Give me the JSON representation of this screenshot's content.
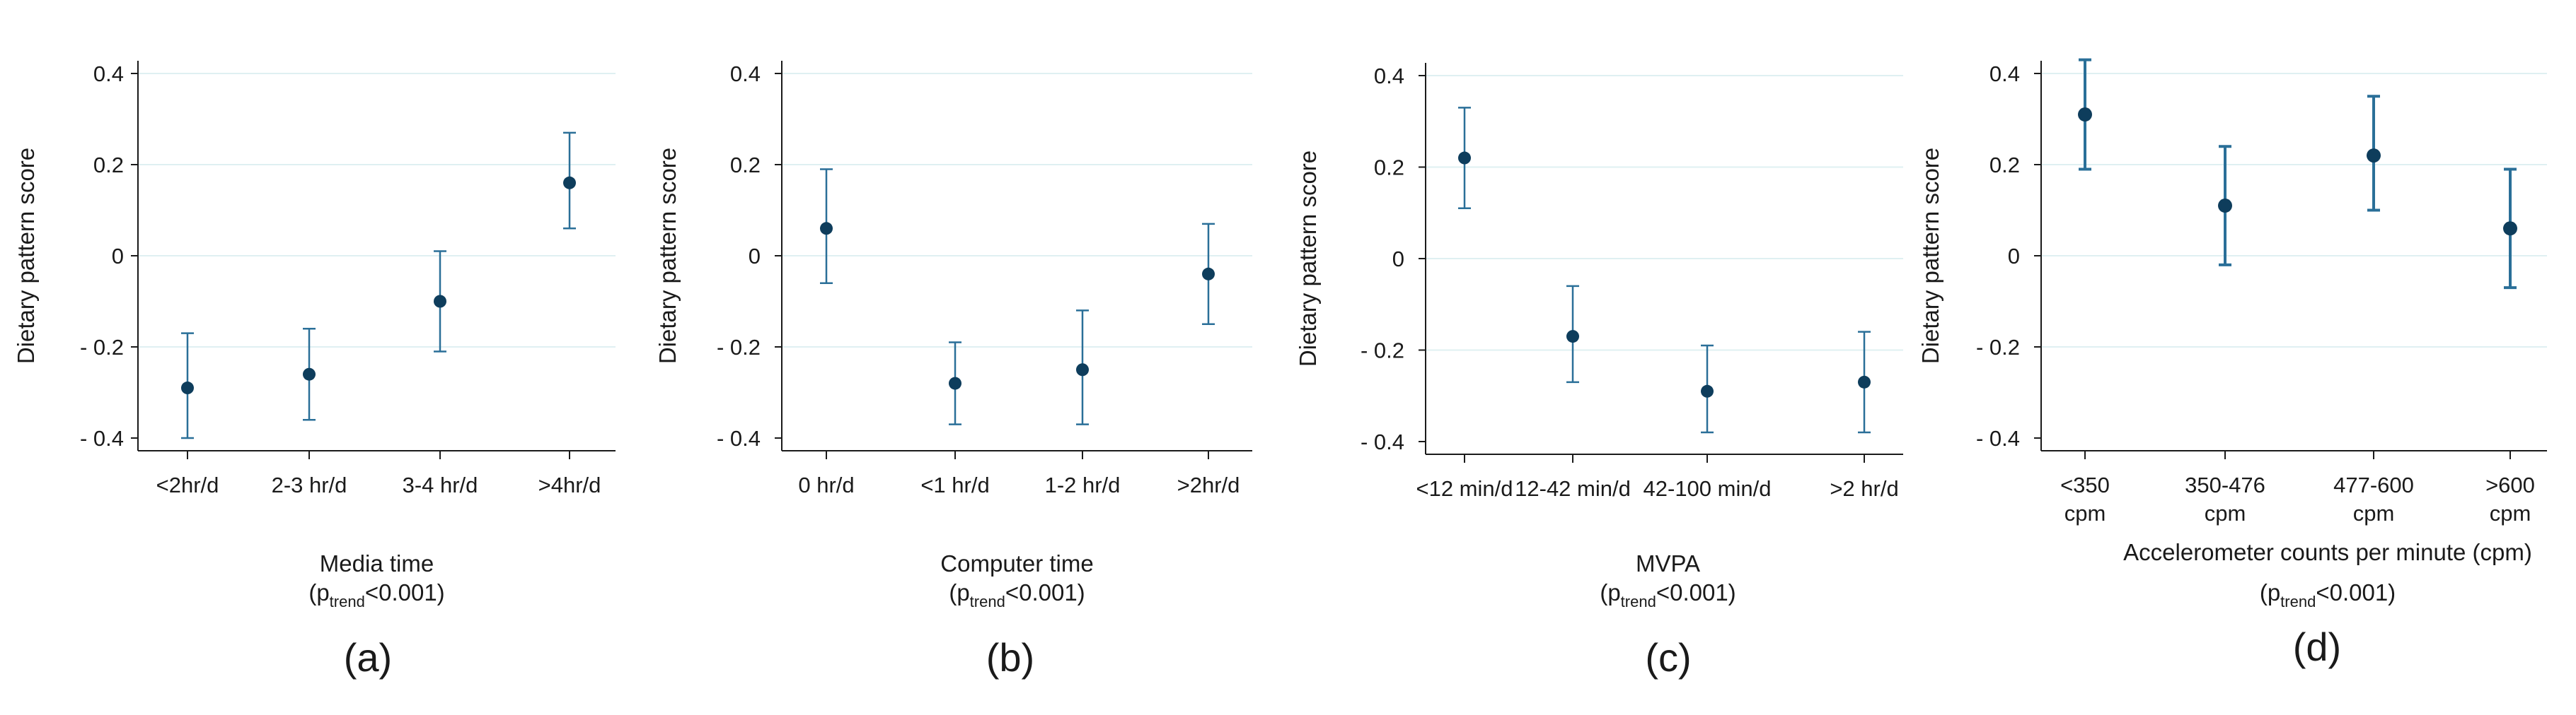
{
  "chart_data": [
    {
      "type": "scatter",
      "panel_label": "(a)",
      "ylabel": "Dietary pattern score",
      "xlabel": "Media time",
      "trend": {
        "prefix": "(p",
        "sub": "trend",
        "suffix": "<0.001)"
      },
      "categories": [
        [
          "<2hr/d"
        ],
        [
          "2-3 hr/d"
        ],
        [
          "3-4 hr/d"
        ],
        [
          ">4hr/d"
        ]
      ],
      "values": [
        -0.29,
        -0.26,
        -0.1,
        0.16
      ],
      "ci_low": [
        -0.4,
        -0.36,
        -0.21,
        0.06
      ],
      "ci_high": [
        -0.17,
        -0.16,
        0.01,
        0.27
      ],
      "yticks": [
        {
          "value": 0.4,
          "label": "0.4"
        },
        {
          "value": 0.2,
          "label": "0.2"
        },
        {
          "value": 0,
          "label": "0"
        },
        {
          "value": -0.2,
          "label": "- 0.2"
        },
        {
          "value": -0.4,
          "label": "- 0.4"
        }
      ],
      "ylim": [
        -0.4,
        0.4
      ],
      "grid": true
    },
    {
      "type": "scatter",
      "panel_label": "(b)",
      "ylabel": "Dietary pattern score",
      "xlabel": "Computer time",
      "trend": {
        "prefix": "(p",
        "sub": "trend",
        "suffix": "<0.001)"
      },
      "categories": [
        [
          "0 hr/d"
        ],
        [
          "<1 hr/d"
        ],
        [
          "1-2 hr/d"
        ],
        [
          ">2hr/d"
        ]
      ],
      "values": [
        0.06,
        -0.28,
        -0.25,
        -0.04
      ],
      "ci_low": [
        -0.06,
        -0.37,
        -0.37,
        -0.15
      ],
      "ci_high": [
        0.19,
        -0.19,
        -0.12,
        0.07
      ],
      "yticks": [
        {
          "value": 0.4,
          "label": "0.4"
        },
        {
          "value": 0.2,
          "label": "0.2"
        },
        {
          "value": 0,
          "label": "0"
        },
        {
          "value": -0.2,
          "label": "- 0.2"
        },
        {
          "value": -0.4,
          "label": "- 0.4"
        }
      ],
      "ylim": [
        -0.4,
        0.4
      ],
      "grid": true
    },
    {
      "type": "scatter",
      "panel_label": "(c)",
      "ylabel": "Dietary pattern score",
      "xlabel": "MVPA",
      "trend": {
        "prefix": "(p",
        "sub": "trend",
        "suffix": "<0.001)"
      },
      "categories": [
        [
          "<12 min/d"
        ],
        [
          "12-42 min/d"
        ],
        [
          "42-100 min/d"
        ],
        [
          ">2 hr/d"
        ]
      ],
      "values": [
        0.22,
        -0.17,
        -0.29,
        -0.27
      ],
      "ci_low": [
        0.11,
        -0.27,
        -0.38,
        -0.38
      ],
      "ci_high": [
        0.33,
        -0.06,
        -0.19,
        -0.16
      ],
      "yticks": [
        {
          "value": 0.4,
          "label": "0.4"
        },
        {
          "value": 0.2,
          "label": "0.2"
        },
        {
          "value": 0,
          "label": "0"
        },
        {
          "value": -0.2,
          "label": "- 0.2"
        },
        {
          "value": -0.4,
          "label": "- 0.4"
        }
      ],
      "ylim": [
        -0.4,
        0.4
      ],
      "grid": true
    },
    {
      "type": "scatter",
      "panel_label": "(d)",
      "ylabel": "Dietary pattern score",
      "xlabel": "Accelerometer counts per minute (cpm)",
      "trend": {
        "prefix": "(p",
        "sub": "trend",
        "suffix": "<0.001)"
      },
      "categories": [
        [
          "<350",
          "cpm"
        ],
        [
          "350-476",
          "cpm"
        ],
        [
          "477-600",
          "cpm"
        ],
        [
          ">600",
          "cpm"
        ]
      ],
      "values": [
        0.31,
        0.11,
        0.22,
        0.06
      ],
      "ci_low": [
        0.19,
        -0.02,
        0.1,
        -0.07
      ],
      "ci_high": [
        0.43,
        0.24,
        0.35,
        0.19
      ],
      "yticks": [
        {
          "value": 0.4,
          "label": "0.4"
        },
        {
          "value": 0.2,
          "label": "0.2"
        },
        {
          "value": 0,
          "label": "0"
        },
        {
          "value": -0.2,
          "label": "- 0.2"
        },
        {
          "value": -0.4,
          "label": "- 0.4"
        }
      ],
      "ylim": [
        -0.4,
        0.4
      ],
      "grid": true
    }
  ]
}
